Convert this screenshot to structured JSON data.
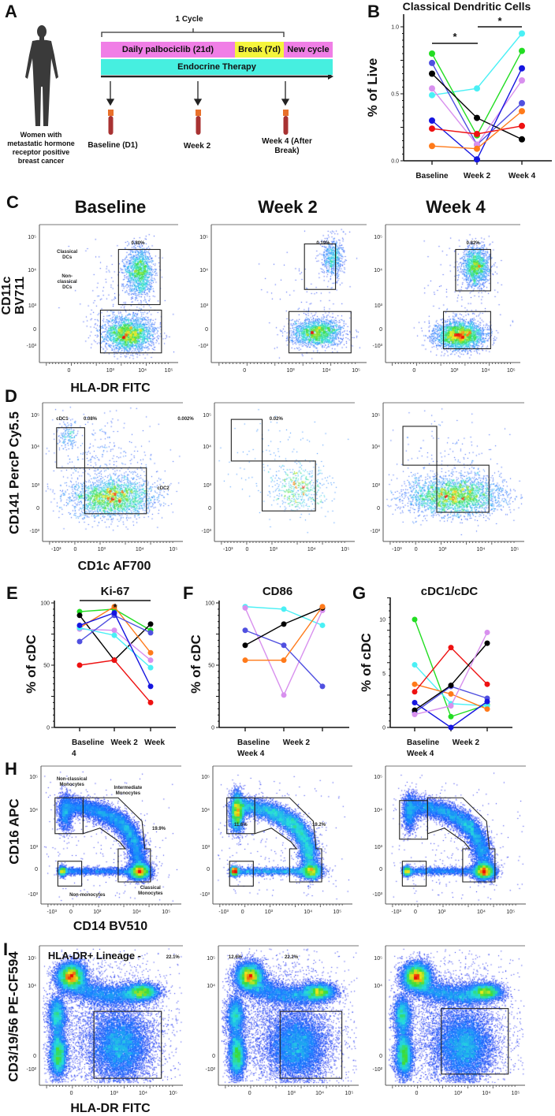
{
  "panel_letters": {
    "a": "A",
    "b": "B",
    "c": "C",
    "d": "D",
    "e": "E",
    "f": "F",
    "g": "G",
    "h": "H",
    "i": "I"
  },
  "panel_a": {
    "cycle_label": "1 Cycle",
    "palbociclib": "Daily palbociclib (21d)",
    "break": "Break (7d)",
    "new_cycle": "New cycle",
    "endocrine": "Endocrine Therapy",
    "patient_lines": [
      "Women with",
      "metastatic hormone",
      "receptor positive",
      "breast cancer"
    ],
    "timepoints": [
      "Baseline (D1)",
      "Week 2",
      "Week 4 (After",
      "Break)"
    ],
    "colors": {
      "pink": "#f07ee6",
      "yellow": "#f5f53c",
      "cyan": "#46efe0",
      "tube": "#a83232",
      "tube_cap": "#e8702a"
    }
  },
  "panel_c": {
    "columns": [
      "Baseline",
      "Week 2",
      "Week 4"
    ],
    "y_title": [
      "CD11c",
      "BV711"
    ],
    "x_title": "HLA-DR FITC",
    "percentages": [
      "0.80%",
      "0.19%",
      "0.82%"
    ],
    "gate_labels": {
      "classical": [
        "Classical",
        "DCs"
      ],
      "nonclassical": [
        "Non-",
        "classical",
        "DCs"
      ]
    }
  },
  "panel_d": {
    "y_title": "CD141 PercP Cy5.5",
    "x_title": "CD1c AF700",
    "labels": {
      "cdc1": "cDC1",
      "cdc2": "cDC2",
      "pct_a": "0.08%",
      "pct_b": "0.002%",
      "pct_week2": "0.02%"
    }
  },
  "panel_h": {
    "y_title": "CD16 APC",
    "x_title": "CD14 BV510",
    "labels": {
      "nonclassical": [
        "Non-classical",
        "Monocytes"
      ],
      "intermediate": [
        "Intermediate",
        "Monocytes"
      ],
      "classical": [
        "Classical",
        "Monocytes"
      ],
      "nonmono": "Non-monocytes",
      "pct_base": "19.9%",
      "pct_w2_a": "11.6%",
      "pct_w2_b": "19.2%"
    }
  },
  "panel_i": {
    "y_title": "CD3/19/56 PE-CF594",
    "x_title": "HLA-DR FITC",
    "gate_title": "HLA-DR+ Lineage -",
    "pct_base": "22.1%",
    "pct_w2_a": "12.6%",
    "pct_w2_b": "22.2%"
  },
  "flow_ticks": {
    "c": {
      "y": [
        "10⁵",
        "10⁴",
        "10³",
        "0",
        "-10³"
      ],
      "x": [
        "0",
        "10³",
        "10⁴",
        "10⁵"
      ]
    },
    "d": {
      "y": [
        "10⁵",
        "10⁴",
        "10³",
        "0",
        "-10³"
      ],
      "x": [
        "-10³",
        "0",
        "10³",
        "10⁴",
        "10⁵"
      ]
    },
    "h": {
      "y": [
        "10⁵",
        "10⁴",
        "10³",
        "0",
        "-10³"
      ],
      "x": [
        "-10³",
        "0",
        "10³",
        "10⁴",
        "10⁵"
      ]
    },
    "i": {
      "y": [
        "10⁵",
        "10⁴",
        "0",
        "-10²"
      ],
      "x": [
        "0",
        "10³",
        "10⁴",
        "10⁵"
      ]
    }
  },
  "chart_data": [
    {
      "id": "B",
      "type": "line",
      "title": "Classical Dendritic Cells",
      "ylabel": "% of Live",
      "categories": [
        "Baseline",
        "Week 2",
        "Week 4"
      ],
      "ylim": [
        0,
        1.0
      ],
      "yticks": [
        "0.0",
        "0.5",
        "1.0"
      ],
      "significance": [
        {
          "from": "Baseline",
          "to": "Week 2",
          "label": "*"
        },
        {
          "from": "Week 2",
          "to": "Week 4",
          "label": "*"
        }
      ],
      "series": [
        {
          "color": "#4af0f5",
          "values": [
            0.49,
            0.54,
            0.95
          ]
        },
        {
          "color": "#22dd22",
          "values": [
            0.8,
            0.19,
            0.82
          ]
        },
        {
          "color": "#5050e0",
          "values": [
            0.73,
            0.12,
            0.43
          ]
        },
        {
          "color": "#000000",
          "values": [
            0.65,
            0.32,
            0.16
          ]
        },
        {
          "color": "#d890ee",
          "values": [
            0.54,
            0.12,
            0.6
          ]
        },
        {
          "color": "#1515e0",
          "values": [
            0.3,
            0.01,
            0.69
          ]
        },
        {
          "color": "#ee1111",
          "values": [
            0.24,
            0.2,
            0.26
          ]
        },
        {
          "color": "#ff7a1a",
          "values": [
            0.11,
            0.09,
            0.37
          ]
        }
      ]
    },
    {
      "id": "E",
      "type": "line",
      "title": "Ki-67",
      "ylabel": "% of cDC",
      "x_label_lines": [
        "Baseline   Week 2   Week",
        "4"
      ],
      "ylim": [
        0,
        100
      ],
      "yticks": [
        "0",
        "50",
        "100"
      ],
      "significance": [
        {
          "from": "Baseline",
          "to": "Week 4",
          "label": "*"
        }
      ],
      "series": [
        {
          "color": "#22dd22",
          "values": [
            93,
            95,
            78
          ]
        },
        {
          "color": "#000000",
          "values": [
            90,
            54,
            83
          ]
        },
        {
          "color": "#ff7a1a",
          "values": [
            80,
            97,
            60
          ]
        },
        {
          "color": "#d890ee",
          "values": [
            79,
            78,
            54
          ]
        },
        {
          "color": "#4af0f5",
          "values": [
            80,
            74,
            48
          ]
        },
        {
          "color": "#5050e0",
          "values": [
            69,
            90,
            76
          ]
        },
        {
          "color": "#1515e0",
          "values": [
            82,
            92,
            33
          ]
        },
        {
          "color": "#ee1111",
          "values": [
            50,
            54,
            20
          ]
        }
      ]
    },
    {
      "id": "F",
      "type": "line",
      "title": "CD86",
      "ylabel": "% of cDC",
      "x_label_lines": [
        "Baseline      Week 2",
        "Week 4"
      ],
      "ylim": [
        0,
        100
      ],
      "yticks": [
        "0",
        "50",
        "100"
      ],
      "series": [
        {
          "color": "#4af0f5",
          "values": [
            97,
            95,
            82
          ]
        },
        {
          "color": "#d890ee",
          "values": [
            96,
            26,
            94
          ]
        },
        {
          "color": "#5050e0",
          "values": [
            78,
            66,
            33
          ]
        },
        {
          "color": "#000000",
          "values": [
            66,
            83,
            96
          ]
        },
        {
          "color": "#ff7a1a",
          "values": [
            54,
            54,
            97
          ]
        }
      ]
    },
    {
      "id": "G",
      "type": "line",
      "title": "cDC1/cDC",
      "ylabel": "% of cDC",
      "x_label_lines": [
        "Baseline      Week 2",
        "Week 4"
      ],
      "ylim": [
        0,
        12
      ],
      "yticks": [
        "0",
        "5",
        "10"
      ],
      "series": [
        {
          "color": "#22dd22",
          "values": [
            10.0,
            1.0,
            2.1
          ]
        },
        {
          "color": "#4af0f5",
          "values": [
            5.8,
            2.2,
            2.0
          ]
        },
        {
          "color": "#ff7a1a",
          "values": [
            4.0,
            3.1,
            1.7
          ]
        },
        {
          "color": "#ee1111",
          "values": [
            3.3,
            7.4,
            4.0
          ]
        },
        {
          "color": "#5050e0",
          "values": [
            1.4,
            3.8,
            2.7
          ]
        },
        {
          "color": "#1515e0",
          "values": [
            2.3,
            0.0,
            2.4
          ]
        },
        {
          "color": "#000000",
          "values": [
            1.6,
            3.9,
            7.8
          ]
        },
        {
          "color": "#d890ee",
          "values": [
            1.2,
            2.0,
            8.8
          ]
        }
      ]
    }
  ]
}
